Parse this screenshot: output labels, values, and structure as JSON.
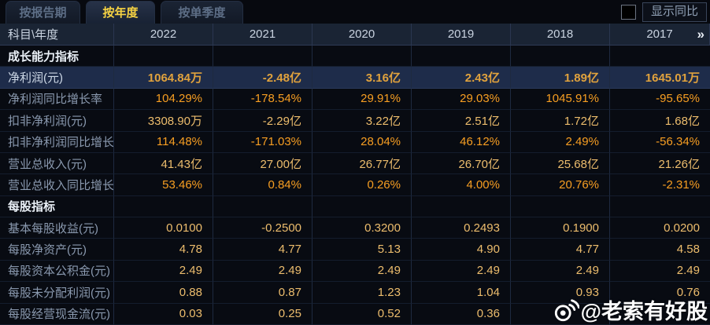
{
  "tabs": [
    {
      "label": "按报告期",
      "active": false
    },
    {
      "label": "按年度",
      "active": true
    },
    {
      "label": "按单季度",
      "active": false
    }
  ],
  "controls": {
    "show_yoy_checkbox_checked": false,
    "show_yoy_label": "显示同比"
  },
  "table": {
    "corner_label": "科目\\年度",
    "years": [
      "2022",
      "2021",
      "2020",
      "2019",
      "2018",
      "2017"
    ],
    "more_icon": "»",
    "rows": [
      {
        "type": "section",
        "label": "成长能力指标",
        "values": [
          "",
          "",
          "",
          "",
          "",
          ""
        ]
      },
      {
        "type": "data",
        "label": "净利润(元)",
        "highlight": true,
        "values": [
          "1064.84万",
          "-2.48亿",
          "3.16亿",
          "2.43亿",
          "1.89亿",
          "1645.01万"
        ]
      },
      {
        "type": "data",
        "label": "净利润同比增长率",
        "percent": true,
        "values": [
          "104.29%",
          "-178.54%",
          "29.91%",
          "29.03%",
          "1045.91%",
          "-95.65%"
        ]
      },
      {
        "type": "data",
        "label": "扣非净利润(元)",
        "values": [
          "3308.90万",
          "-2.29亿",
          "3.22亿",
          "2.51亿",
          "1.72亿",
          "1.68亿"
        ]
      },
      {
        "type": "data",
        "label": "扣非净利润同比增长率",
        "percent": true,
        "values": [
          "114.48%",
          "-171.03%",
          "28.04%",
          "46.12%",
          "2.49%",
          "-56.34%"
        ]
      },
      {
        "type": "data",
        "label": "营业总收入(元)",
        "values": [
          "41.43亿",
          "27.00亿",
          "26.77亿",
          "26.70亿",
          "25.68亿",
          "21.26亿"
        ]
      },
      {
        "type": "data",
        "label": "营业总收入同比增长率",
        "percent": true,
        "values": [
          "53.46%",
          "0.84%",
          "0.26%",
          "4.00%",
          "20.76%",
          "-2.31%"
        ]
      },
      {
        "type": "section",
        "label": "每股指标",
        "values": [
          "",
          "",
          "",
          "",
          "",
          ""
        ]
      },
      {
        "type": "data",
        "label": "基本每股收益(元)",
        "values": [
          "0.0100",
          "-0.2500",
          "0.3200",
          "0.2493",
          "0.1900",
          "0.0200"
        ]
      },
      {
        "type": "data",
        "label": "每股净资产(元)",
        "values": [
          "4.78",
          "4.77",
          "5.13",
          "4.90",
          "4.77",
          "4.58"
        ]
      },
      {
        "type": "data",
        "label": "每股资本公积金(元)",
        "values": [
          "2.49",
          "2.49",
          "2.49",
          "2.49",
          "2.49",
          "2.49"
        ]
      },
      {
        "type": "data",
        "label": "每股未分配利润(元)",
        "values": [
          "0.88",
          "0.87",
          "1.23",
          "1.04",
          "0.93",
          "0.76"
        ]
      },
      {
        "type": "data",
        "label": "每股经营现金流(元)",
        "values": [
          "0.03",
          "0.25",
          "0.52",
          "0.36",
          "",
          ""
        ]
      }
    ]
  },
  "watermark": {
    "text": "@老索有好股",
    "icon": "weibo-icon"
  },
  "colors": {
    "accent_gold": "#e0a23d",
    "accent_orange": "#f79e22",
    "value_tan": "#edbd6d",
    "tab_active_text": "#f7d343",
    "highlight_row_bg": "#1e2c4a",
    "header_bg": "#1a2434"
  }
}
